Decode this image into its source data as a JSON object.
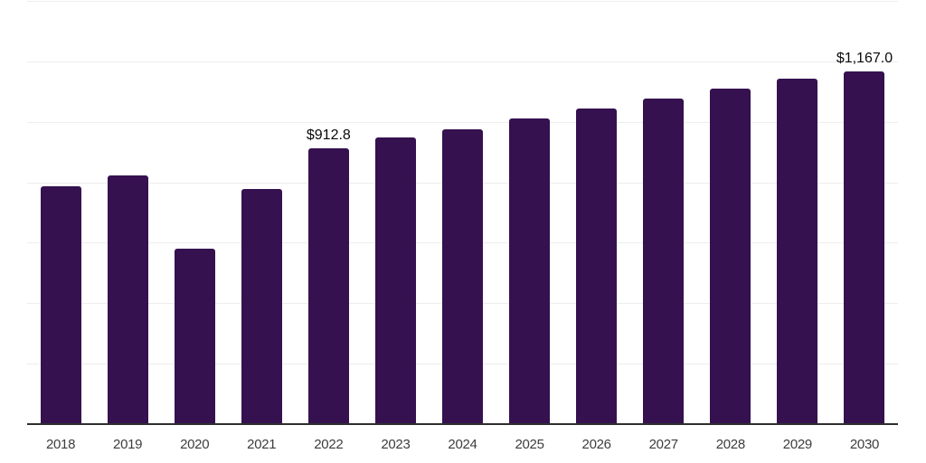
{
  "chart_data": {
    "type": "bar",
    "title": "",
    "xlabel": "",
    "ylabel": "",
    "categories": [
      "2018",
      "2019",
      "2020",
      "2021",
      "2022",
      "2023",
      "2024",
      "2025",
      "2026",
      "2027",
      "2028",
      "2029",
      "2030"
    ],
    "values": [
      786,
      822,
      580,
      778,
      912.8,
      947,
      975,
      1010,
      1044,
      1076,
      1110,
      1143,
      1167
    ],
    "data_labels": [
      "",
      "",
      "",
      "",
      "$912.8",
      "",
      "",
      "",
      "",
      "",
      "",
      "",
      "$1,167.0"
    ],
    "ylim": [
      0,
      1400
    ],
    "gridline_step": 200,
    "grid": true,
    "legend": false,
    "colors": {
      "bar": "#351150",
      "gridline": "#ededed",
      "axis_line": "#2e2e2e",
      "tick_label": "#3d3d3d",
      "data_label": "#0a0a0a",
      "background": "#ffffff"
    }
  }
}
